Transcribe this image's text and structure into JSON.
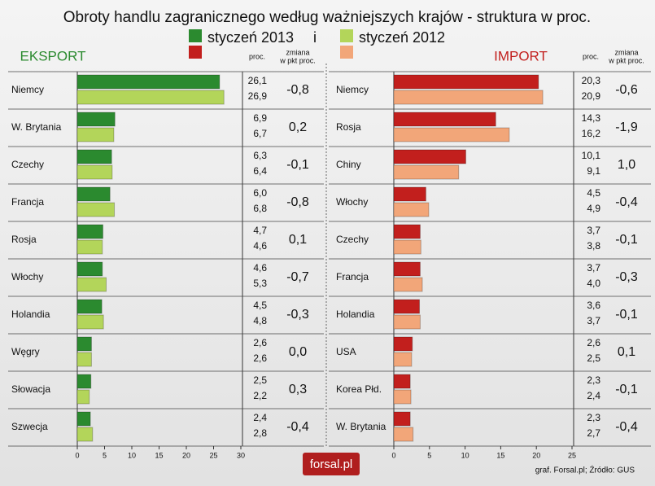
{
  "title": "Obroty handlu zagranicznego według ważniejszych krajów - struktura w proc.",
  "legend_joiner": "i",
  "footer": "graf. Forsal.pl;  Źródło: GUS",
  "logo": "forsal.pl",
  "chart_data": [
    {
      "type": "bar",
      "orientation": "horizontal",
      "title": "EKSPORT",
      "value_header": "proc.",
      "change_header": [
        "zmiana",
        "w pkt proc."
      ],
      "categories": [
        "Niemcy",
        "W. Brytania",
        "Czechy",
        "Francja",
        "Rosja",
        "Włochy",
        "Holandia",
        "Węgry",
        "Słowacja",
        "Szwecja"
      ],
      "series": [
        {
          "name": "styczeń 2013",
          "color": "#2b8a2f",
          "values": [
            26.1,
            6.9,
            6.3,
            6.0,
            4.7,
            4.6,
            4.5,
            2.6,
            2.5,
            2.4
          ],
          "value_labels": [
            "26,1",
            "6,9",
            "6,3",
            "6,0",
            "4,7",
            "4,6",
            "4,5",
            "2,6",
            "2,5",
            "2,4"
          ]
        },
        {
          "name": "styczeń 2012",
          "color": "#b3d55a",
          "values": [
            26.9,
            6.7,
            6.4,
            6.8,
            4.6,
            5.3,
            4.8,
            2.6,
            2.2,
            2.8
          ],
          "value_labels": [
            "26,9",
            "6,7",
            "6,4",
            "6,8",
            "4,6",
            "5,3",
            "4,8",
            "2,6",
            "2,2",
            "2,8"
          ]
        }
      ],
      "changes": [
        -0.8,
        0.2,
        -0.1,
        -0.8,
        0.1,
        -0.7,
        -0.3,
        0.0,
        0.3,
        -0.4
      ],
      "change_labels": [
        "-0,8",
        "0,2",
        "-0,1",
        "-0,8",
        "0,1",
        "-0,7",
        "-0,3",
        "0,0",
        "0,3",
        "-0,4"
      ],
      "xlim": [
        0,
        30
      ],
      "xticks": [
        0,
        5,
        10,
        15,
        20,
        25,
        30
      ]
    },
    {
      "type": "bar",
      "orientation": "horizontal",
      "title": "IMPORT",
      "value_header": "proc.",
      "change_header": [
        "zmiana",
        "w pkt proc."
      ],
      "categories": [
        "Niemcy",
        "Rosja",
        "Chiny",
        "Włochy",
        "Czechy",
        "Francja",
        "Holandia",
        "USA",
        "Korea Płd.",
        "W. Brytania"
      ],
      "series": [
        {
          "color": "#c21f1d",
          "values": [
            20.3,
            14.3,
            10.1,
            4.5,
            3.7,
            3.7,
            3.6,
            2.6,
            2.3,
            2.3
          ],
          "value_labels": [
            "20,3",
            "14,3",
            "10,1",
            "4,5",
            "3,7",
            "3,7",
            "3,6",
            "2,6",
            "2,3",
            "2,3"
          ]
        },
        {
          "color": "#f2a679",
          "values": [
            20.9,
            16.2,
            9.1,
            4.9,
            3.8,
            4.0,
            3.7,
            2.5,
            2.4,
            2.7
          ],
          "value_labels": [
            "20,9",
            "16,2",
            "9,1",
            "4,9",
            "3,8",
            "4,0",
            "3,7",
            "2,5",
            "2,4",
            "2,7"
          ]
        }
      ],
      "changes": [
        -0.6,
        -1.9,
        1.0,
        -0.4,
        -0.1,
        -0.3,
        -0.1,
        0.1,
        -0.1,
        -0.4
      ],
      "change_labels": [
        "-0,6",
        "-1,9",
        "1,0",
        "-0,4",
        "-0,1",
        "-0,3",
        "-0,1",
        "0,1",
        "-0,1",
        "-0,4"
      ],
      "xlim": [
        0,
        25
      ],
      "xticks": [
        0,
        5,
        10,
        15,
        20,
        25
      ]
    }
  ]
}
